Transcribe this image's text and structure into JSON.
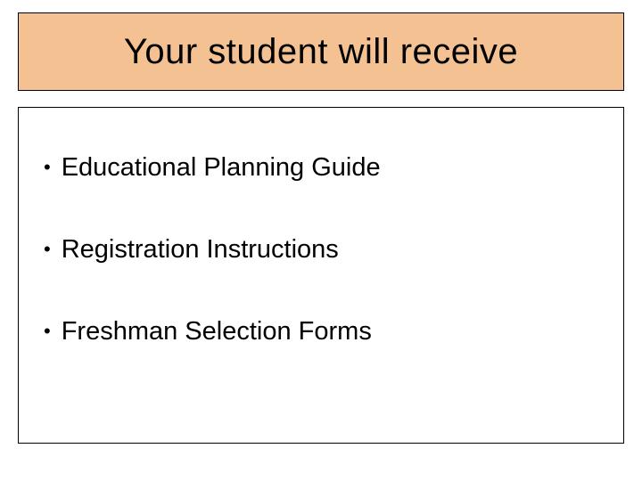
{
  "colors": {
    "title_bar_bg": "#f4c193",
    "content_box_bg": "#ffffff",
    "text_color": "#000000",
    "border_color": "#000000",
    "slide_bg": "#ffffff"
  },
  "typography": {
    "title_fontsize": 40,
    "bullet_fontsize": 29,
    "font_family": "Arial"
  },
  "title": "Your student will receive",
  "bullets": [
    "Educational Planning Guide",
    "Registration Instructions",
    "Freshman Selection Forms"
  ],
  "layout": {
    "slide_width": 720,
    "slide_height": 540,
    "title_bar_height": 88,
    "content_box_height": 378,
    "bullet_spacing": 58
  }
}
